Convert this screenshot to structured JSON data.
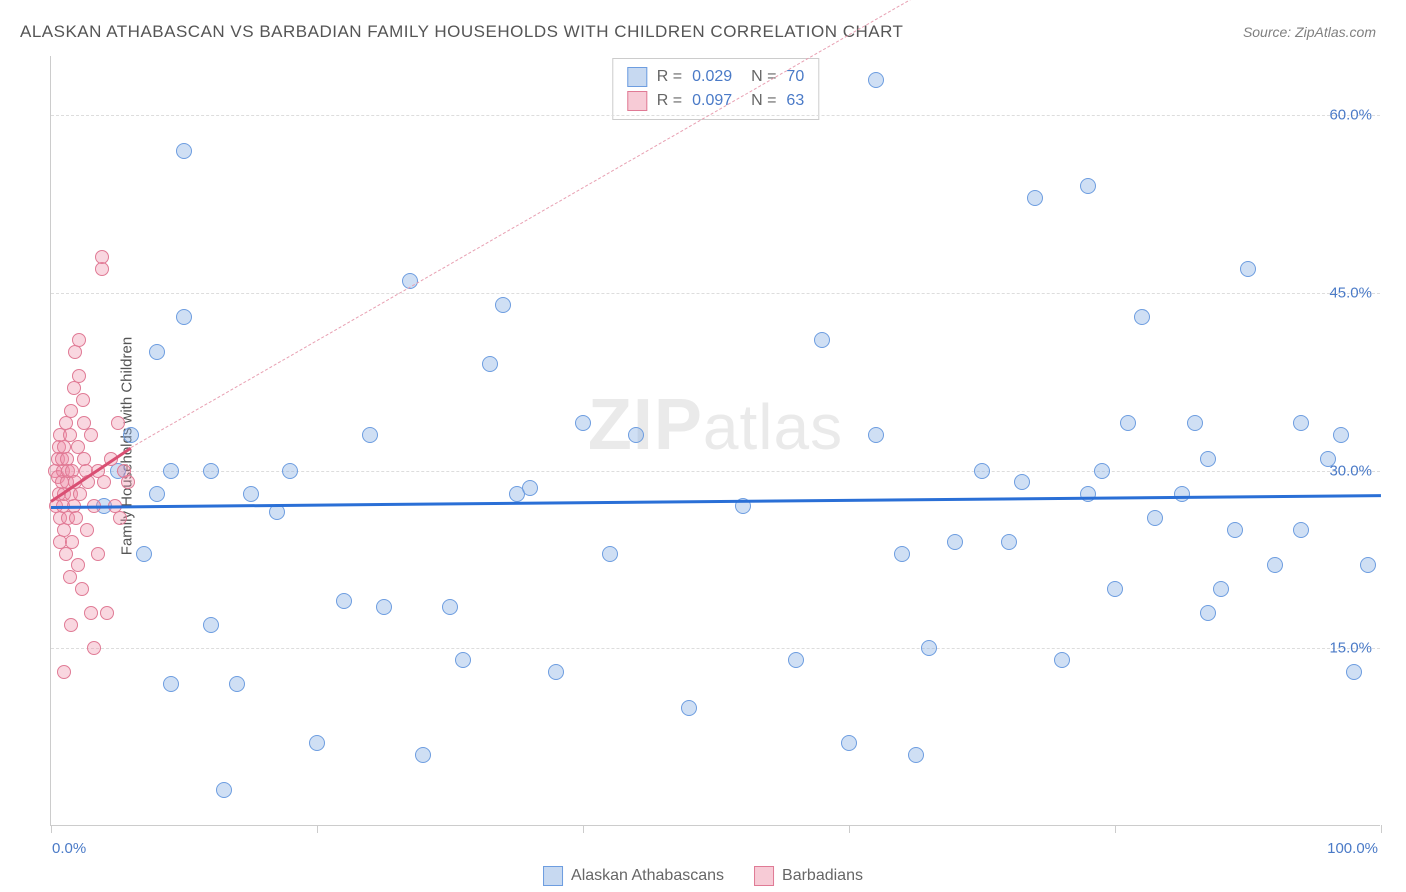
{
  "title": "ALASKAN ATHABASCAN VS BARBADIAN FAMILY HOUSEHOLDS WITH CHILDREN CORRELATION CHART",
  "source_label": "Source:",
  "source_value": "ZipAtlas.com",
  "ylabel": "Family Households with Children",
  "watermark": "ZIPatlas",
  "chart": {
    "type": "scatter",
    "xlim": [
      0,
      100
    ],
    "ylim": [
      0,
      65
    ],
    "yticks": [
      15,
      30,
      45,
      60
    ],
    "ytick_labels": [
      "15.0%",
      "30.0%",
      "45.0%",
      "60.0%"
    ],
    "xticks": [
      0,
      20,
      40,
      60,
      80,
      100
    ],
    "xtick_labels_shown": {
      "0": "0.0%",
      "100": "100.0%"
    },
    "background_color": "#ffffff",
    "grid_color": "#dddddd",
    "axis_color": "#cccccc",
    "label_color": "#4a7ac7",
    "title_color": "#555555",
    "series": [
      {
        "name": "Alaskan Athabascans",
        "marker_fill": "rgba(130,170,225,0.38)",
        "marker_stroke": "#6d9de0",
        "marker_size": 16,
        "trend_color": "#2a6fd6",
        "trend_style": "solid",
        "R": "0.029",
        "N": "70",
        "trend_y_at_x0": 27.0,
        "trend_y_at_x100": 28.0,
        "points": [
          [
            4,
            27
          ],
          [
            5,
            30
          ],
          [
            6,
            33
          ],
          [
            7,
            23
          ],
          [
            8,
            40
          ],
          [
            8,
            28
          ],
          [
            9,
            30
          ],
          [
            9,
            12
          ],
          [
            10,
            57
          ],
          [
            10,
            43
          ],
          [
            12,
            30
          ],
          [
            12,
            17
          ],
          [
            13,
            3
          ],
          [
            14,
            12
          ],
          [
            15,
            28
          ],
          [
            17,
            26.5
          ],
          [
            18,
            30
          ],
          [
            20,
            7
          ],
          [
            22,
            19
          ],
          [
            24,
            33
          ],
          [
            25,
            18.5
          ],
          [
            27,
            46
          ],
          [
            28,
            6
          ],
          [
            30,
            18.5
          ],
          [
            31,
            14
          ],
          [
            33,
            39
          ],
          [
            34,
            44
          ],
          [
            35,
            28
          ],
          [
            36,
            28.5
          ],
          [
            38,
            13
          ],
          [
            40,
            34
          ],
          [
            42,
            23
          ],
          [
            44,
            33
          ],
          [
            48,
            10
          ],
          [
            52,
            27
          ],
          [
            56,
            14
          ],
          [
            58,
            41
          ],
          [
            60,
            7
          ],
          [
            62,
            33
          ],
          [
            62,
            63
          ],
          [
            64,
            23
          ],
          [
            65,
            6
          ],
          [
            66,
            15
          ],
          [
            68,
            24
          ],
          [
            70,
            30
          ],
          [
            72,
            24
          ],
          [
            73,
            29
          ],
          [
            74,
            53
          ],
          [
            76,
            14
          ],
          [
            78,
            28
          ],
          [
            79,
            30
          ],
          [
            78,
            54
          ],
          [
            80,
            20
          ],
          [
            81,
            34
          ],
          [
            82,
            43
          ],
          [
            83,
            26
          ],
          [
            85,
            28
          ],
          [
            86,
            34
          ],
          [
            87,
            31
          ],
          [
            87,
            18
          ],
          [
            88,
            20
          ],
          [
            89,
            25
          ],
          [
            90,
            47
          ],
          [
            92,
            22
          ],
          [
            94,
            34
          ],
          [
            94,
            25
          ],
          [
            96,
            31
          ],
          [
            97,
            33
          ],
          [
            98,
            13
          ],
          [
            99,
            22
          ]
        ]
      },
      {
        "name": "Barbadians",
        "marker_fill": "rgba(238,140,165,0.35)",
        "marker_stroke": "#e07a95",
        "marker_size": 14,
        "trend_color": "#d94f73",
        "trend_style": "solid",
        "trend_extend_color": "#e8a0b2",
        "trend_extend_style": "dashed",
        "R": "0.097",
        "N": "63",
        "trend_y_at_x0": 27.5,
        "trend_y_at_x_end": 32.0,
        "trend_x_end": 6,
        "extend_to_x": 68,
        "extend_to_y": 72,
        "points": [
          [
            0.3,
            30
          ],
          [
            0.4,
            27
          ],
          [
            0.5,
            31
          ],
          [
            0.5,
            29.5
          ],
          [
            0.6,
            32
          ],
          [
            0.6,
            28
          ],
          [
            0.7,
            33
          ],
          [
            0.7,
            26
          ],
          [
            0.7,
            24
          ],
          [
            0.8,
            29
          ],
          [
            0.8,
            31
          ],
          [
            0.9,
            30
          ],
          [
            0.9,
            27
          ],
          [
            1.0,
            32
          ],
          [
            1.0,
            25
          ],
          [
            1.0,
            28
          ],
          [
            1.1,
            34
          ],
          [
            1.1,
            23
          ],
          [
            1.2,
            29
          ],
          [
            1.2,
            31
          ],
          [
            1.3,
            26
          ],
          [
            1.3,
            30
          ],
          [
            1.4,
            33
          ],
          [
            1.4,
            21
          ],
          [
            1.5,
            28
          ],
          [
            1.5,
            35
          ],
          [
            1.6,
            30
          ],
          [
            1.6,
            24
          ],
          [
            1.7,
            37
          ],
          [
            1.7,
            27
          ],
          [
            1.8,
            29
          ],
          [
            1.8,
            40
          ],
          [
            1.9,
            26
          ],
          [
            2.0,
            32
          ],
          [
            2.0,
            22
          ],
          [
            2.1,
            38
          ],
          [
            2.1,
            41
          ],
          [
            2.2,
            28
          ],
          [
            2.3,
            20
          ],
          [
            2.4,
            36
          ],
          [
            2.5,
            31
          ],
          [
            2.6,
            30
          ],
          [
            2.7,
            25
          ],
          [
            2.8,
            29
          ],
          [
            3.0,
            33
          ],
          [
            3.0,
            18
          ],
          [
            3.2,
            15
          ],
          [
            3.2,
            27
          ],
          [
            3.5,
            23
          ],
          [
            3.5,
            30
          ],
          [
            3.8,
            47
          ],
          [
            3.8,
            48
          ],
          [
            4.0,
            29
          ],
          [
            4.2,
            18
          ],
          [
            4.5,
            31
          ],
          [
            4.8,
            27
          ],
          [
            5.0,
            34
          ],
          [
            5.2,
            26
          ],
          [
            5.5,
            30
          ],
          [
            5.8,
            29
          ],
          [
            1.0,
            13
          ],
          [
            1.5,
            17
          ],
          [
            2.5,
            34
          ]
        ]
      }
    ]
  },
  "stats_box": {
    "rows": [
      {
        "swatch_fill": "rgba(130,170,225,0.45)",
        "swatch_stroke": "#6d9de0",
        "R": "0.029",
        "N": "70"
      },
      {
        "swatch_fill": "rgba(238,140,165,0.45)",
        "swatch_stroke": "#e07a95",
        "R": "0.097",
        "N": "63"
      }
    ]
  },
  "legend": [
    {
      "swatch_fill": "rgba(130,170,225,0.45)",
      "swatch_stroke": "#6d9de0",
      "label": "Alaskan Athabascans"
    },
    {
      "swatch_fill": "rgba(238,140,165,0.45)",
      "swatch_stroke": "#e07a95",
      "label": "Barbadians"
    }
  ]
}
